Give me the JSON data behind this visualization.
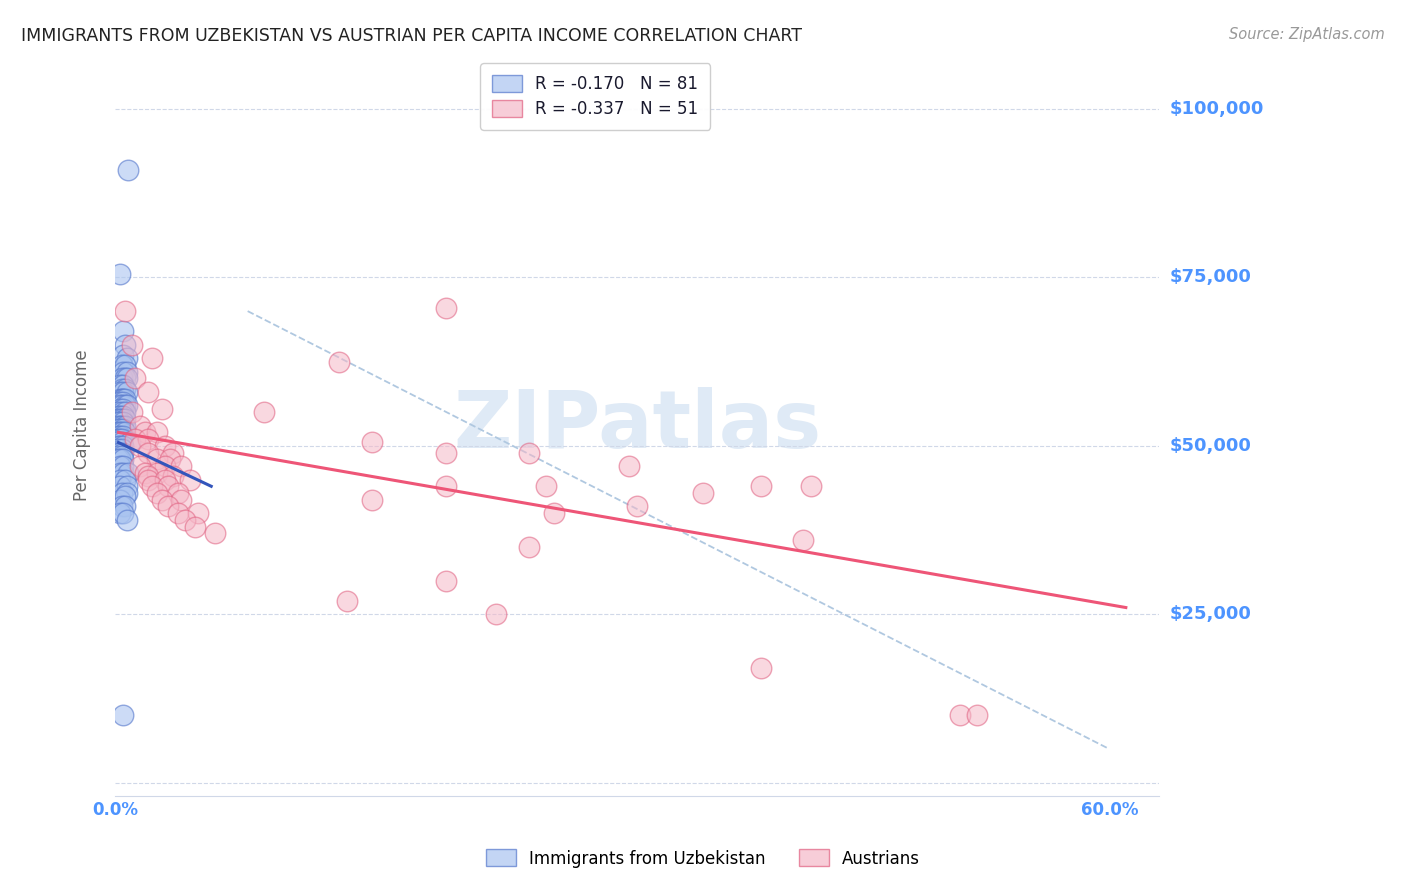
{
  "title": "IMMIGRANTS FROM UZBEKISTAN VS AUSTRIAN PER CAPITA INCOME CORRELATION CHART",
  "source": "Source: ZipAtlas.com",
  "ylabel": "Per Capita Income",
  "yticks": [
    0,
    25000,
    50000,
    75000,
    100000
  ],
  "ytick_labels": [
    "",
    "$25,000",
    "$50,000",
    "$75,000",
    "$100,000"
  ],
  "xlim": [
    0.0,
    0.63
  ],
  "ylim": [
    -2000,
    108000
  ],
  "color_blue": "#aac4f0",
  "color_pink": "#f5b8c8",
  "color_blue_edge": "#5577cc",
  "color_pink_edge": "#e06080",
  "color_blue_line": "#3355bb",
  "color_pink_line": "#ee5577",
  "color_dashed_line": "#b0c8e0",
  "watermark_color": "#dce8f5",
  "axis_label_color": "#4d94ff",
  "grid_color": "#d0d8e8",
  "title_color": "#222222",
  "source_color": "#999999",
  "blue_scatter": [
    [
      0.008,
      91000
    ],
    [
      0.003,
      75500
    ],
    [
      0.005,
      67000
    ],
    [
      0.006,
      65000
    ],
    [
      0.005,
      63500
    ],
    [
      0.007,
      63000
    ],
    [
      0.004,
      62000
    ],
    [
      0.006,
      62000
    ],
    [
      0.005,
      61000
    ],
    [
      0.007,
      61000
    ],
    [
      0.004,
      60000
    ],
    [
      0.006,
      60000
    ],
    [
      0.007,
      60000
    ],
    [
      0.003,
      59000
    ],
    [
      0.005,
      59000
    ],
    [
      0.004,
      58500
    ],
    [
      0.006,
      58500
    ],
    [
      0.003,
      58000
    ],
    [
      0.005,
      58000
    ],
    [
      0.007,
      58000
    ],
    [
      0.003,
      57000
    ],
    [
      0.004,
      57000
    ],
    [
      0.005,
      57000
    ],
    [
      0.006,
      57000
    ],
    [
      0.003,
      56500
    ],
    [
      0.005,
      56500
    ],
    [
      0.003,
      56000
    ],
    [
      0.004,
      56000
    ],
    [
      0.006,
      56000
    ],
    [
      0.007,
      56000
    ],
    [
      0.003,
      55500
    ],
    [
      0.005,
      55500
    ],
    [
      0.002,
      55000
    ],
    [
      0.004,
      55000
    ],
    [
      0.006,
      55000
    ],
    [
      0.002,
      54500
    ],
    [
      0.003,
      54500
    ],
    [
      0.005,
      54500
    ],
    [
      0.002,
      54000
    ],
    [
      0.003,
      54000
    ],
    [
      0.004,
      54000
    ],
    [
      0.006,
      54000
    ],
    [
      0.002,
      53500
    ],
    [
      0.003,
      53500
    ],
    [
      0.005,
      53500
    ],
    [
      0.002,
      53000
    ],
    [
      0.003,
      53000
    ],
    [
      0.004,
      53000
    ],
    [
      0.006,
      53000
    ],
    [
      0.002,
      52500
    ],
    [
      0.003,
      52500
    ],
    [
      0.005,
      52500
    ],
    [
      0.002,
      52000
    ],
    [
      0.003,
      52000
    ],
    [
      0.004,
      52000
    ],
    [
      0.006,
      52000
    ],
    [
      0.002,
      51500
    ],
    [
      0.003,
      51500
    ],
    [
      0.005,
      51500
    ],
    [
      0.002,
      51000
    ],
    [
      0.003,
      51000
    ],
    [
      0.004,
      51000
    ],
    [
      0.002,
      50500
    ],
    [
      0.004,
      50500
    ],
    [
      0.009,
      50500
    ],
    [
      0.002,
      50000
    ],
    [
      0.003,
      50000
    ],
    [
      0.005,
      50000
    ],
    [
      0.002,
      49500
    ],
    [
      0.004,
      49500
    ],
    [
      0.002,
      49000
    ],
    [
      0.003,
      49000
    ],
    [
      0.005,
      49000
    ],
    [
      0.002,
      48500
    ],
    [
      0.004,
      48500
    ],
    [
      0.002,
      48000
    ],
    [
      0.003,
      48000
    ],
    [
      0.005,
      48000
    ],
    [
      0.003,
      47000
    ],
    [
      0.005,
      47000
    ],
    [
      0.003,
      46000
    ],
    [
      0.005,
      46000
    ],
    [
      0.008,
      46000
    ],
    [
      0.003,
      45000
    ],
    [
      0.006,
      45000
    ],
    [
      0.003,
      44000
    ],
    [
      0.007,
      44000
    ],
    [
      0.004,
      43000
    ],
    [
      0.007,
      43000
    ],
    [
      0.003,
      42000
    ],
    [
      0.006,
      42500
    ],
    [
      0.004,
      41000
    ],
    [
      0.006,
      41000
    ],
    [
      0.003,
      40000
    ],
    [
      0.005,
      40000
    ],
    [
      0.007,
      39000
    ],
    [
      0.005,
      10000
    ]
  ],
  "pink_scatter": [
    [
      0.006,
      70000
    ],
    [
      0.01,
      65000
    ],
    [
      0.022,
      63000
    ],
    [
      0.012,
      60000
    ],
    [
      0.02,
      58000
    ],
    [
      0.028,
      55500
    ],
    [
      0.01,
      55000
    ],
    [
      0.015,
      53000
    ],
    [
      0.018,
      52000
    ],
    [
      0.025,
      52000
    ],
    [
      0.012,
      51000
    ],
    [
      0.02,
      51000
    ],
    [
      0.015,
      50000
    ],
    [
      0.03,
      50000
    ],
    [
      0.02,
      49000
    ],
    [
      0.035,
      49000
    ],
    [
      0.025,
      48000
    ],
    [
      0.033,
      48000
    ],
    [
      0.015,
      47000
    ],
    [
      0.03,
      47000
    ],
    [
      0.04,
      47000
    ],
    [
      0.018,
      46000
    ],
    [
      0.025,
      46000
    ],
    [
      0.02,
      45500
    ],
    [
      0.035,
      45500
    ],
    [
      0.02,
      45000
    ],
    [
      0.03,
      45000
    ],
    [
      0.045,
      45000
    ],
    [
      0.022,
      44000
    ],
    [
      0.032,
      44000
    ],
    [
      0.025,
      43000
    ],
    [
      0.038,
      43000
    ],
    [
      0.028,
      42000
    ],
    [
      0.04,
      42000
    ],
    [
      0.032,
      41000
    ],
    [
      0.038,
      40000
    ],
    [
      0.05,
      40000
    ],
    [
      0.042,
      39000
    ],
    [
      0.048,
      38000
    ],
    [
      0.06,
      37000
    ],
    [
      0.2,
      70500
    ],
    [
      0.135,
      62500
    ],
    [
      0.09,
      55000
    ],
    [
      0.155,
      50500
    ],
    [
      0.2,
      49000
    ],
    [
      0.25,
      49000
    ],
    [
      0.31,
      47000
    ],
    [
      0.2,
      44000
    ],
    [
      0.26,
      44000
    ],
    [
      0.39,
      44000
    ],
    [
      0.355,
      43000
    ],
    [
      0.42,
      44000
    ],
    [
      0.155,
      42000
    ],
    [
      0.315,
      41000
    ],
    [
      0.265,
      40000
    ],
    [
      0.415,
      36000
    ],
    [
      0.25,
      35000
    ],
    [
      0.2,
      30000
    ],
    [
      0.14,
      27000
    ],
    [
      0.23,
      25000
    ],
    [
      0.39,
      17000
    ],
    [
      0.51,
      10000
    ],
    [
      0.52,
      10000
    ]
  ],
  "blue_line_x": [
    0.002,
    0.058
  ],
  "blue_line_y": [
    50500,
    44000
  ],
  "pink_line_x": [
    0.002,
    0.61
  ],
  "pink_line_y": [
    52000,
    26000
  ],
  "dashed_line_x": [
    0.08,
    0.6
  ],
  "dashed_line_y": [
    70000,
    5000
  ]
}
